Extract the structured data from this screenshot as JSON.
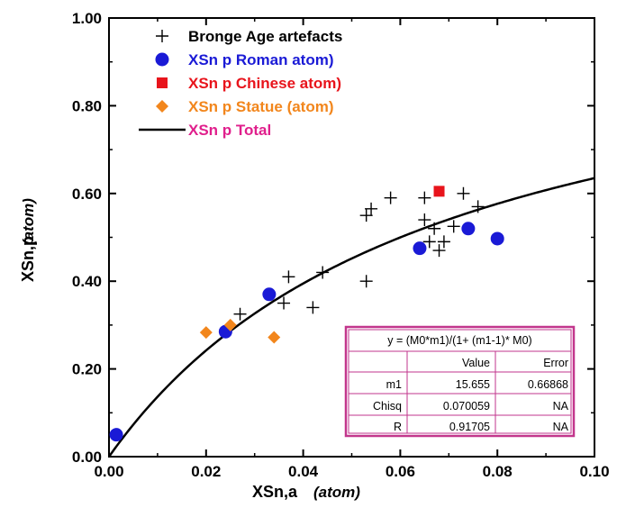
{
  "chart_data": {
    "type": "scatter",
    "xlabel": "XSn,a",
    "xlabel_unit": "(atom)",
    "ylabel": "XSn,p",
    "ylabel_unit": "(atom)",
    "xlim": [
      0.0,
      0.1
    ],
    "ylim": [
      0.0,
      1.0
    ],
    "x_ticks": [
      "0.00",
      "0.02",
      "0.04",
      "0.06",
      "0.08",
      "0.10"
    ],
    "y_ticks": [
      "0.00",
      "0.20",
      "0.40",
      "0.60",
      "0.80",
      "1.00"
    ],
    "grid": false,
    "legend_position": "top-left",
    "series": [
      {
        "name": "Bronge Age artefacts",
        "marker": "plus",
        "color": "#000000",
        "points": [
          [
            0.027,
            0.325
          ],
          [
            0.036,
            0.35
          ],
          [
            0.037,
            0.41
          ],
          [
            0.042,
            0.34
          ],
          [
            0.044,
            0.42
          ],
          [
            0.053,
            0.4
          ],
          [
            0.053,
            0.55
          ],
          [
            0.054,
            0.565
          ],
          [
            0.058,
            0.59
          ],
          [
            0.065,
            0.59
          ],
          [
            0.065,
            0.54
          ],
          [
            0.066,
            0.49
          ],
          [
            0.067,
            0.52
          ],
          [
            0.068,
            0.47
          ],
          [
            0.069,
            0.49
          ],
          [
            0.071,
            0.525
          ],
          [
            0.073,
            0.6
          ],
          [
            0.076,
            0.57
          ]
        ]
      },
      {
        "name": "XSn p Roman atom)",
        "marker": "circle",
        "color": "#1a1ad6",
        "points": [
          [
            0.0015,
            0.05
          ],
          [
            0.024,
            0.285
          ],
          [
            0.033,
            0.37
          ],
          [
            0.064,
            0.475
          ],
          [
            0.074,
            0.52
          ],
          [
            0.08,
            0.497
          ]
        ]
      },
      {
        "name": "XSn p Chinese atom)",
        "marker": "square",
        "color": "#e8141c",
        "points": [
          [
            0.068,
            0.605
          ]
        ]
      },
      {
        "name": "XSn p Statue (atom)",
        "marker": "diamond",
        "color": "#f2861c",
        "points": [
          [
            0.02,
            0.283
          ],
          [
            0.025,
            0.3
          ],
          [
            0.034,
            0.272
          ]
        ]
      },
      {
        "name": "XSn p Total",
        "marker": "line",
        "color": "#000000",
        "text_color": "#e01f8c",
        "fit": {
          "m0": "x",
          "m1": 15.655
        }
      }
    ],
    "legend_text_colors": [
      "#000000",
      "#1a1ad6",
      "#e8141c",
      "#f2861c",
      "#e01f8c"
    ],
    "fit_table": {
      "border_color": "#c2368c",
      "equation": "y = (M0*m1)/(1+ (m1-1)* M0)",
      "headers": [
        "",
        "Value",
        "Error"
      ],
      "rows": [
        [
          "m1",
          "15.655",
          "0.66868"
        ],
        [
          "Chisq",
          "0.070059",
          "NA"
        ],
        [
          "R",
          "0.91705",
          "NA"
        ]
      ]
    }
  }
}
